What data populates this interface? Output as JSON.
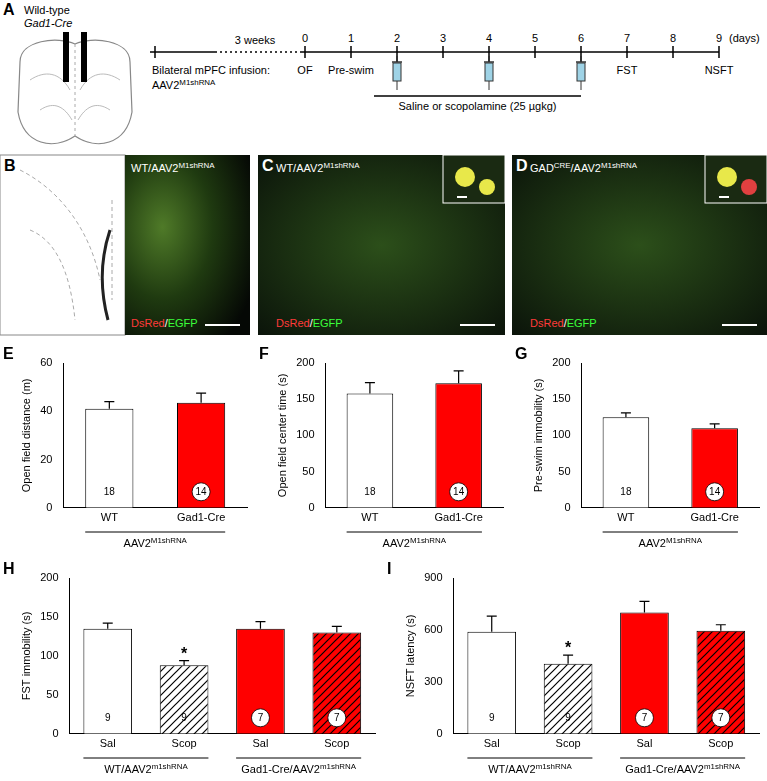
{
  "panel_A": {
    "letter": "A",
    "left": [
      "Wild-type",
      "Gad1-Cre"
    ],
    "interval": "3 weeks",
    "unit": "(days)",
    "days": [
      0,
      1,
      2,
      3,
      4,
      5,
      6,
      7,
      8,
      9
    ],
    "events": [
      {
        "day": 0,
        "label": "OF"
      },
      {
        "day": 1,
        "label": "Pre-swim"
      },
      {
        "day": 7,
        "label": "FST"
      },
      {
        "day": 9,
        "label": "NSFT"
      }
    ],
    "infusion": {
      "text": "Bilateral mPFC infusion:",
      "agent": [
        {
          "text": "AAV2"
        },
        {
          "sup": "M1shRNA"
        }
      ]
    },
    "injections": [
      2,
      4,
      6
    ],
    "treatment": "Saline or scopolamine (25 µgkg)"
  },
  "images": [
    {
      "letter": "B",
      "label": [
        {
          "text": "WT/AAV2"
        },
        {
          "sup": "M1shRNA"
        }
      ],
      "stain": [
        {
          "text": "DsRed",
          "color": "#ff3a3a"
        },
        {
          "text": "/",
          "color": "#ffffff"
        },
        {
          "text": "EGFP",
          "color": "#3aff3a"
        }
      ]
    },
    {
      "letter": "C",
      "label": [
        {
          "text": "WT/AAV2"
        },
        {
          "sup": "M1shRNA"
        }
      ],
      "stain": [
        {
          "text": "DsRed",
          "color": "#ff3a3a"
        },
        {
          "text": "/",
          "color": "#ffffff"
        },
        {
          "text": "EGFP",
          "color": "#3aff3a"
        }
      ]
    },
    {
      "letter": "D",
      "label": [
        {
          "text": "GAD"
        },
        {
          "sup": "CRE"
        },
        {
          "text": "/AAV2"
        },
        {
          "sup": "M1shRNA"
        }
      ],
      "stain": [
        {
          "text": "DsRed",
          "color": "#ff3a3a"
        },
        {
          "text": "/",
          "color": "#ffffff"
        },
        {
          "text": "EGFP",
          "color": "#3aff3a"
        }
      ]
    }
  ],
  "chart_data": [
    {
      "panel": "E",
      "type": "bar",
      "y_label": "Open field distance (m)",
      "categories": [
        "WT",
        "Gad1-Cre"
      ],
      "values": [
        41,
        43.5
      ],
      "errors": [
        3,
        4
      ],
      "n": [
        18,
        14
      ],
      "colors": [
        "#ffffff",
        "#ff0000"
      ],
      "ylim": [
        0,
        60
      ],
      "yticks": [
        0,
        20,
        40,
        60
      ],
      "groups": [
        {
          "label": [
            {
              "text": "AAV2"
            },
            {
              "sup": "M1shRNA"
            }
          ],
          "span": [
            0,
            1
          ]
        }
      ]
    },
    {
      "panel": "F",
      "type": "bar",
      "y_label": "Open field center time (s)",
      "categories": [
        "WT",
        "Gad1-Cre"
      ],
      "values": [
        158,
        172
      ],
      "errors": [
        15,
        17
      ],
      "n": [
        18,
        14
      ],
      "colors": [
        "#ffffff",
        "#ff0000"
      ],
      "ylim": [
        0,
        200
      ],
      "yticks": [
        0,
        50,
        100,
        150,
        200
      ],
      "groups": [
        {
          "label": [
            {
              "text": "AAV2"
            },
            {
              "sup": "M1shRNA"
            }
          ],
          "span": [
            0,
            1
          ]
        }
      ]
    },
    {
      "panel": "G",
      "type": "bar",
      "y_label": "Pre-swim immobility (s)",
      "categories": [
        "WT",
        "Gad1-Cre"
      ],
      "values": [
        125,
        110
      ],
      "errors": [
        6,
        6
      ],
      "n": [
        18,
        14
      ],
      "colors": [
        "#ffffff",
        "#ff0000"
      ],
      "ylim": [
        0,
        200
      ],
      "yticks": [
        0,
        50,
        100,
        150,
        200
      ],
      "groups": [
        {
          "label": [
            {
              "text": "AAV2"
            },
            {
              "sup": "M1shRNA"
            }
          ],
          "span": [
            0,
            1
          ]
        }
      ]
    },
    {
      "panel": "H",
      "type": "bar",
      "y_label": "FST immobility (s)",
      "categories": [
        "Sal",
        "Scop",
        "Sal",
        "Scop"
      ],
      "values": [
        135,
        88,
        135,
        130
      ],
      "errors": [
        7,
        6,
        9,
        8
      ],
      "n": [
        9,
        9,
        7,
        7
      ],
      "colors": [
        "#ffffff",
        "#ffffff",
        "#ff0000",
        "#ff0000"
      ],
      "annotations": [
        {
          "index": 1,
          "text": "*"
        }
      ],
      "ylim": [
        0,
        200
      ],
      "yticks": [
        0,
        50,
        100,
        150,
        200
      ],
      "groups": [
        {
          "label": [
            {
              "text": "WT/AAV2"
            },
            {
              "sup": "m1shRNA"
            }
          ],
          "span": [
            0,
            1
          ]
        },
        {
          "label": [
            {
              "text": "Gad1-Cre/AAV2"
            },
            {
              "sup": "m1shRNA"
            }
          ],
          "span": [
            2,
            3
          ]
        }
      ]
    },
    {
      "panel": "I",
      "type": "bar",
      "y_label": "NSFT latency (s)",
      "categories": [
        "Sal",
        "Scop",
        "Sal",
        "Scop"
      ],
      "values": [
        590,
        405,
        700,
        595
      ],
      "errors": [
        90,
        50,
        65,
        35
      ],
      "n": [
        9,
        9,
        7,
        7
      ],
      "colors": [
        "#ffffff",
        "#ffffff",
        "#ff0000",
        "#ff0000"
      ],
      "annotations": [
        {
          "index": 1,
          "text": "*"
        }
      ],
      "ylim": [
        0,
        900
      ],
      "yticks": [
        0,
        300,
        600,
        900
      ],
      "groups": [
        {
          "label": [
            {
              "text": "WT/AAV2"
            },
            {
              "sup": "m1shRNA"
            }
          ],
          "span": [
            0,
            1
          ]
        },
        {
          "label": [
            {
              "text": "Gad1-Cre/AAV2"
            },
            {
              "sup": "m1shRNA"
            }
          ],
          "span": [
            2,
            3
          ]
        }
      ]
    }
  ]
}
